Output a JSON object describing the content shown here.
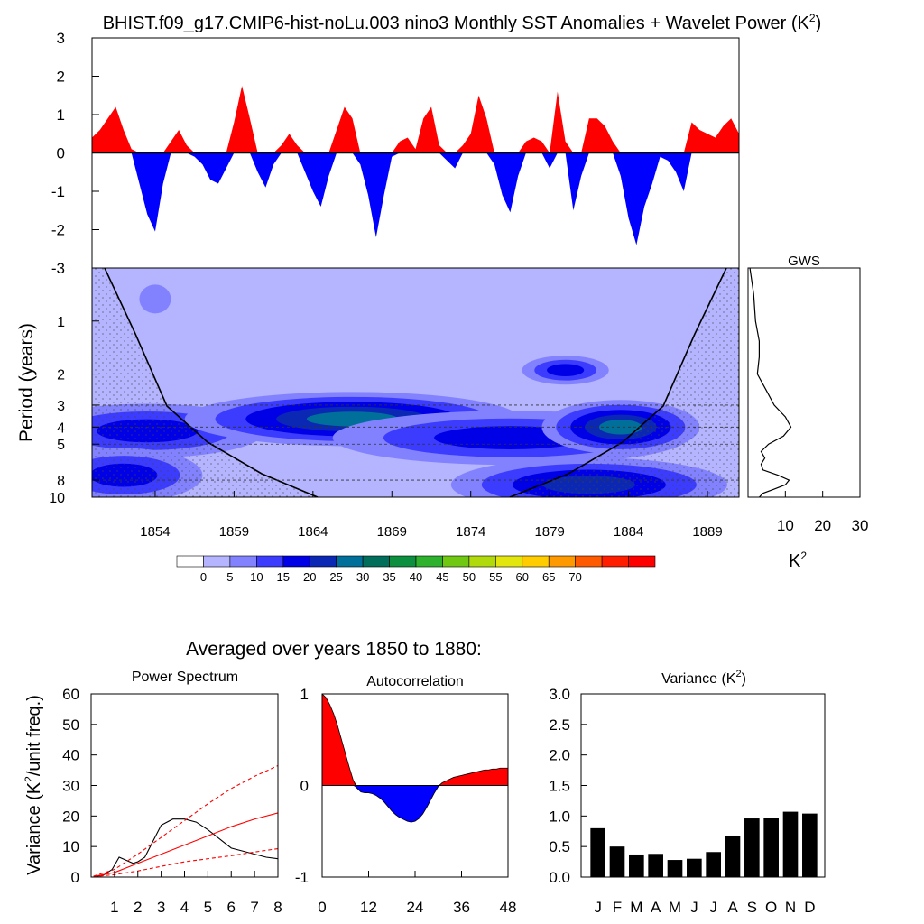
{
  "page": {
    "title": "BHIST.f09_g17.CMIP6-hist-noLu.003 nino3 Monthly SST Anomalies + Wavelet Power (K",
    "title_sup": "2",
    "title_close": ")"
  },
  "chart_data": [
    {
      "id": "timeseries",
      "type": "area",
      "title": "nino3 Monthly SST Anomalies",
      "ylim": [
        -3,
        3
      ],
      "yticks": [
        "3",
        "2",
        "1",
        "0",
        "-1",
        "-2",
        "-3"
      ],
      "xlim": [
        1850,
        1891
      ],
      "positive_color": "#ff0000",
      "negative_color": "#0000ff",
      "x": [
        1850.0,
        1850.5,
        1851.0,
        1851.5,
        1852.0,
        1852.5,
        1853.0,
        1853.5,
        1854.0,
        1854.5,
        1855.0,
        1855.5,
        1856.0,
        1856.5,
        1857.0,
        1857.5,
        1858.0,
        1858.5,
        1859.0,
        1859.5,
        1860.0,
        1860.5,
        1861.0,
        1861.5,
        1862.0,
        1862.5,
        1863.0,
        1863.5,
        1864.0,
        1864.5,
        1865.0,
        1865.5,
        1866.0,
        1866.5,
        1867.0,
        1867.5,
        1868.0,
        1868.5,
        1869.0,
        1869.5,
        1870.0,
        1870.5,
        1871.0,
        1871.5,
        1872.0,
        1872.5,
        1873.0,
        1873.5,
        1874.0,
        1874.5,
        1875.0,
        1875.5,
        1876.0,
        1876.5,
        1877.0,
        1877.5,
        1878.0,
        1878.5,
        1879.0,
        1879.5,
        1880.0,
        1880.5,
        1881.0,
        1881.5,
        1882.0,
        1882.5,
        1883.0,
        1883.5,
        1884.0,
        1884.5,
        1885.0,
        1885.5,
        1886.0,
        1886.5,
        1887.0,
        1887.5,
        1888.0,
        1888.5,
        1889.0,
        1889.5,
        1890.0,
        1890.5,
        1891.0
      ],
      "values": [
        0.4,
        0.6,
        0.9,
        1.2,
        0.6,
        0.1,
        -0.8,
        -1.6,
        -2.05,
        -0.8,
        0.3,
        0.6,
        0.2,
        -0.1,
        -0.3,
        -0.7,
        -0.8,
        -0.4,
        0.8,
        1.75,
        0.9,
        -0.5,
        -0.9,
        -0.3,
        0.2,
        0.5,
        0.2,
        -0.5,
        -1.0,
        -1.4,
        -0.6,
        0.6,
        1.2,
        0.9,
        -0.3,
        -1.1,
        -2.2,
        -1.1,
        -0.1,
        0.3,
        0.4,
        0.1,
        0.9,
        1.2,
        0.2,
        -0.2,
        -0.4,
        0.2,
        0.5,
        1.5,
        0.9,
        -0.3,
        -1.1,
        -1.55,
        -0.6,
        0.3,
        0.4,
        0.3,
        -0.4,
        1.6,
        0.3,
        -1.5,
        -0.6,
        0.9,
        0.9,
        0.7,
        0.3,
        -0.6,
        -1.7,
        -2.4,
        -1.4,
        -0.8,
        -0.1,
        -0.2,
        -0.5,
        -1.0,
        0.8,
        0.6,
        0.5,
        0.4,
        0.7,
        0.9,
        0.5
      ]
    },
    {
      "id": "wavelet",
      "type": "heatmap",
      "ylabel": "Period (years)",
      "yticks": [
        "1",
        "2",
        "3",
        "4",
        "5",
        "8",
        "10"
      ],
      "xticks": [
        "1854",
        "1859",
        "1864",
        "1869",
        "1874",
        "1879",
        "1884",
        "1889"
      ],
      "xlim": [
        1850,
        1891
      ],
      "period_range": [
        0.5,
        10
      ],
      "dashed_period_lines": [
        2,
        3,
        4,
        5,
        8
      ],
      "colors": [
        "#ffffff",
        "#b4b4ff",
        "#8282ff",
        "#3c3cff",
        "#0000e6",
        "#0a28b4",
        "#00709a",
        "#006e5a",
        "#0d8f40",
        "#2eb22e",
        "#70c812",
        "#b0da0c",
        "#e2e60c",
        "#ffcc00",
        "#ff9900",
        "#ff5a00",
        "#ff1e00",
        "#ff0000"
      ],
      "blobs": [
        {
          "year": 1853.5,
          "period": 4.2,
          "dyear": 6.0,
          "level": 4
        },
        {
          "year": 1866.5,
          "period": 3.6,
          "dyear": 8.5,
          "level": 6
        },
        {
          "year": 1876.5,
          "period": 4.6,
          "dyear": 9.0,
          "level": 4
        },
        {
          "year": 1883.5,
          "period": 4.0,
          "dyear": 4.0,
          "level": 6
        },
        {
          "year": 1881.5,
          "period": 8.5,
          "dyear": 7.0,
          "level": 5
        },
        {
          "year": 1852.0,
          "period": 7.5,
          "dyear": 4.0,
          "level": 4
        },
        {
          "year": 1880.0,
          "period": 1.9,
          "dyear": 2.2,
          "level": 4
        },
        {
          "year": 1854.0,
          "period": 0.75,
          "dyear": 0.8,
          "level": 2
        }
      ]
    },
    {
      "id": "gws",
      "type": "line",
      "title": "GWS",
      "xticks": [
        "10",
        "20",
        "30"
      ],
      "xlabel": "K",
      "xlabel_sup": "2",
      "xlim": [
        0,
        30
      ],
      "period": [
        0.5,
        0.7,
        1.0,
        1.3,
        1.6,
        2.0,
        2.5,
        3.0,
        3.5,
        4.0,
        4.5,
        5.0,
        5.5,
        6.0,
        6.5,
        7.0,
        7.5,
        8.0,
        8.5,
        9.0,
        9.5,
        10.0
      ],
      "power": [
        0.5,
        1.5,
        2.0,
        3.0,
        3.0,
        2.5,
        5.0,
        7.0,
        10.0,
        11.5,
        9.5,
        5.5,
        3.5,
        4.5,
        3.5,
        4.0,
        8.0,
        11.0,
        10.0,
        7.0,
        4.0,
        3.0
      ]
    },
    {
      "id": "colorbar",
      "type": "legend",
      "labels": [
        "0",
        "5",
        "10",
        "15",
        "20",
        "25",
        "30",
        "35",
        "40",
        "45",
        "50",
        "55",
        "60",
        "65",
        "70"
      ],
      "colors": [
        "#ffffff",
        "#b4b4ff",
        "#8282ff",
        "#3c3cff",
        "#0000e6",
        "#0a28b4",
        "#00709a",
        "#006e5a",
        "#0d8f40",
        "#2eb22e",
        "#70c812",
        "#b0da0c",
        "#e2e60c",
        "#ffcc00",
        "#ff9900",
        "#ff5a00",
        "#ff1e00",
        "#ff0000"
      ]
    },
    {
      "id": "power_spectrum",
      "type": "line",
      "section_title": "Averaged over years 1850 to 1880:",
      "title": "Power Spectrum",
      "ylabel": "Variance (K",
      "ylabel_sup": "2",
      "ylabel_close": "/unit freq.)",
      "xlim": [
        0,
        8
      ],
      "ylim": [
        0,
        60
      ],
      "xticks": [
        "1",
        "2",
        "3",
        "4",
        "5",
        "6",
        "7",
        "8"
      ],
      "yticks": [
        "60",
        "50",
        "40",
        "30",
        "20",
        "10",
        "0"
      ],
      "series": [
        {
          "name": "spectrum",
          "color": "#000000",
          "x": [
            0.1,
            0.5,
            0.9,
            1.2,
            1.5,
            1.8,
            2.0,
            2.3,
            2.6,
            3.0,
            3.5,
            4.0,
            4.5,
            5.0,
            5.5,
            6.0,
            6.5,
            7.0,
            7.5,
            8.0
          ],
          "values": [
            0.2,
            0.5,
            2.5,
            6.5,
            5.5,
            4.5,
            5.0,
            6.5,
            11.0,
            17.0,
            19.0,
            19.0,
            18.0,
            15.5,
            12.5,
            9.5,
            8.5,
            7.5,
            6.5,
            6.0
          ]
        },
        {
          "name": "red-noise",
          "color": "#ff0000",
          "x": [
            0.1,
            1,
            2,
            3,
            4,
            5,
            6,
            7,
            8
          ],
          "values": [
            0.2,
            1.5,
            4.5,
            7.5,
            10.5,
            13.5,
            16.5,
            19,
            21
          ]
        },
        {
          "name": "lower-bound",
          "color": "#ff0000",
          "dashed": true,
          "x": [
            0.1,
            1,
            2,
            3,
            4,
            5,
            6,
            7,
            8
          ],
          "values": [
            0.1,
            0.8,
            2.0,
            3.5,
            5.0,
            6.0,
            7.0,
            8.2,
            9.3
          ]
        },
        {
          "name": "upper-bound",
          "color": "#ff0000",
          "dashed": true,
          "x": [
            0.1,
            1,
            2,
            3,
            4,
            5,
            6,
            7,
            8
          ],
          "values": [
            0.3,
            2.5,
            7.5,
            13,
            18.5,
            24,
            29,
            33,
            36.5
          ]
        }
      ]
    },
    {
      "id": "autocorrelation",
      "type": "area",
      "title": "Autocorrelation",
      "xlim": [
        0,
        48
      ],
      "ylim": [
        -1,
        1
      ],
      "xticks": [
        "0",
        "12",
        "24",
        "36",
        "48"
      ],
      "yticks": [
        "1",
        "0",
        "-1"
      ],
      "positive_color": "#ff0000",
      "negative_color": "#0000ff",
      "x": [
        0,
        1,
        2,
        3,
        4,
        5,
        6,
        7,
        8,
        9,
        10,
        11,
        12,
        13,
        14,
        15,
        16,
        17,
        18,
        19,
        20,
        21,
        22,
        23,
        24,
        25,
        26,
        27,
        28,
        29,
        30,
        31,
        32,
        33,
        34,
        35,
        36,
        37,
        38,
        39,
        40,
        41,
        42,
        43,
        44,
        45,
        46,
        47,
        48
      ],
      "values": [
        1.0,
        0.96,
        0.88,
        0.78,
        0.65,
        0.5,
        0.35,
        0.2,
        0.06,
        -0.03,
        -0.07,
        -0.08,
        -0.08,
        -0.09,
        -0.11,
        -0.14,
        -0.18,
        -0.23,
        -0.28,
        -0.32,
        -0.35,
        -0.37,
        -0.39,
        -0.4,
        -0.39,
        -0.36,
        -0.31,
        -0.24,
        -0.16,
        -0.08,
        -0.01,
        0.03,
        0.05,
        0.07,
        0.09,
        0.1,
        0.11,
        0.12,
        0.13,
        0.14,
        0.15,
        0.16,
        0.17,
        0.17,
        0.18,
        0.18,
        0.19,
        0.19,
        0.19
      ]
    },
    {
      "id": "variance",
      "type": "bar",
      "title": "Variance (K",
      "title_sup": "2",
      "title_close": ")",
      "ylim": [
        0,
        3
      ],
      "yticks": [
        "3.0",
        "2.5",
        "2.0",
        "1.5",
        "1.0",
        "0.5",
        "0.0"
      ],
      "categories": [
        "J",
        "F",
        "M",
        "A",
        "M",
        "J",
        "J",
        "A",
        "S",
        "O",
        "N",
        "D"
      ],
      "values": [
        0.8,
        0.5,
        0.37,
        0.38,
        0.28,
        0.3,
        0.41,
        0.68,
        0.96,
        0.97,
        1.07,
        1.04
      ],
      "color": "#000000"
    }
  ]
}
